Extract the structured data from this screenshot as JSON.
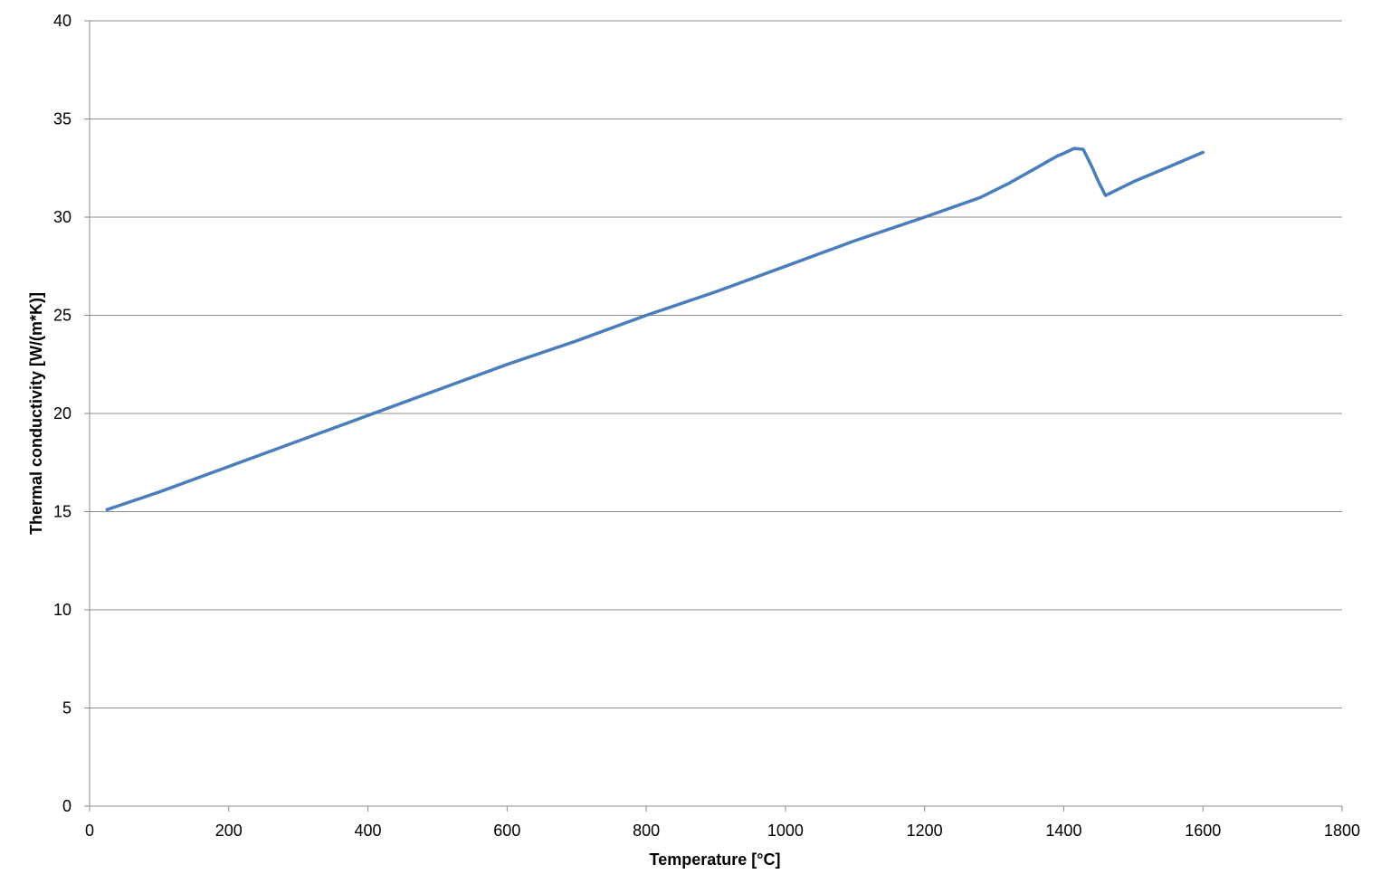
{
  "chart_data": {
    "type": "line",
    "title": "",
    "xlabel": "Temperature [°C]",
    "ylabel": "Thermal conductivity [W/(m*K)]",
    "xlim": [
      0,
      1800
    ],
    "ylim": [
      0,
      40
    ],
    "x_ticks": [
      0,
      200,
      400,
      600,
      800,
      1000,
      1200,
      1400,
      1600,
      1800
    ],
    "y_ticks": [
      0,
      5,
      10,
      15,
      20,
      25,
      30,
      35,
      40
    ],
    "grid": "horizontal",
    "legend": "none",
    "series": [
      {
        "color": "#4a7ebb",
        "x": [
          25,
          100,
          200,
          300,
          400,
          500,
          600,
          700,
          800,
          900,
          1000,
          1100,
          1200,
          1280,
          1320,
          1360,
          1390,
          1400,
          1415,
          1428,
          1440,
          1450,
          1460,
          1500,
          1550,
          1600
        ],
        "y": [
          15.1,
          16.0,
          17.3,
          18.6,
          19.9,
          21.2,
          22.5,
          23.7,
          25.0,
          26.2,
          27.5,
          28.8,
          30.0,
          31.0,
          31.7,
          32.5,
          33.1,
          33.25,
          33.5,
          33.45,
          32.6,
          31.8,
          31.1,
          31.8,
          32.55,
          33.3
        ]
      }
    ]
  }
}
